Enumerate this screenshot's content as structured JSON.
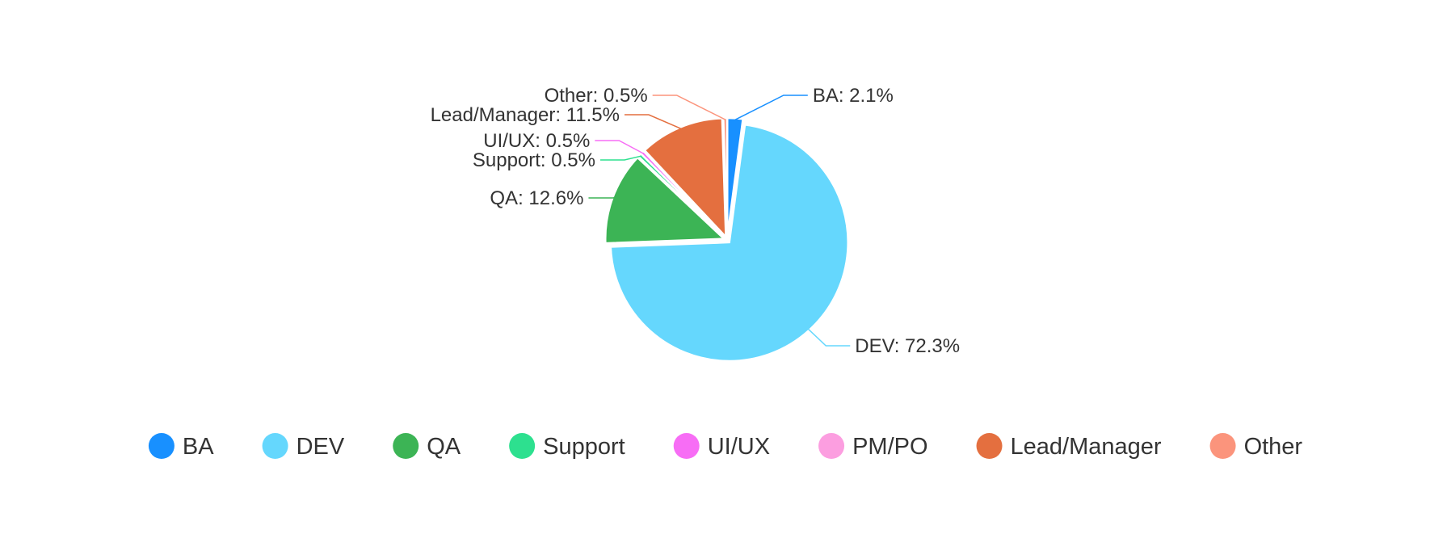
{
  "chart_data": {
    "type": "pie",
    "title": "",
    "slices": [
      {
        "name": "BA",
        "value": 2.1,
        "label": "BA: 2.1%",
        "color": "#1890ff"
      },
      {
        "name": "DEV",
        "value": 72.3,
        "label": "DEV: 72.3%",
        "color": "#65d7fd"
      },
      {
        "name": "QA",
        "value": 12.6,
        "label": "QA: 12.6%",
        "color": "#3cb455"
      },
      {
        "name": "Support",
        "value": 0.5,
        "label": "Support: 0.5%",
        "color": "#2de08f"
      },
      {
        "name": "UI/UX",
        "value": 0.5,
        "label": "UI/UX: 0.5%",
        "color": "#f76df5"
      },
      {
        "name": "PM/PO",
        "value": 0,
        "label": "",
        "color": "#fc9ee0"
      },
      {
        "name": "Lead/Manager",
        "value": 11.5,
        "label": "Lead/Manager: 11.5%",
        "color": "#e46f3f"
      },
      {
        "name": "Other",
        "value": 0.5,
        "label": "Other: 0.5%",
        "color": "#fb947c"
      }
    ],
    "legend": {
      "position": "bottom",
      "items": [
        "BA",
        "DEV",
        "QA",
        "Support",
        "UI/UX",
        "PM/PO",
        "Lead/Manager",
        "Other"
      ]
    }
  }
}
